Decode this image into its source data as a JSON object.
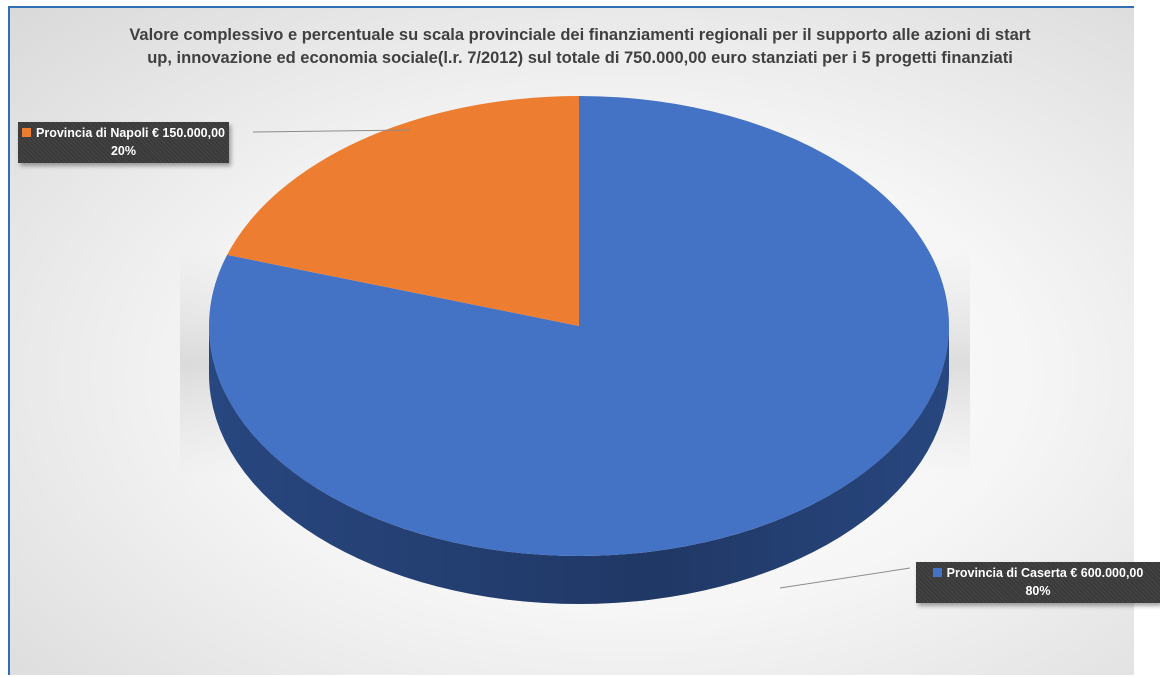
{
  "chart_data": {
    "type": "pie",
    "title_lines": [
      "Valore complessivo e percentuale su scala provinciale dei finanziamenti regionali per il supporto alle azioni di start",
      "up, innovazione ed economia  sociale(l.r. 7/2012) sul totale di 750.000,00 euro stanziati per i 5 progetti finanziati"
    ],
    "slices": [
      {
        "name": "Provincia di Caserta",
        "label": "Provincia di Caserta € 600.000,00",
        "value": 600000,
        "percent_label": "80%",
        "color": "#4472c4",
        "side_color": "#2a4a86"
      },
      {
        "name": "Provincia di Napoli",
        "label": "Provincia di Napoli € 150.000,00",
        "value": 150000,
        "percent_label": "20%",
        "color": "#ed7d31",
        "side_color": "#a3531c"
      }
    ],
    "legend": "none",
    "three_d": true
  }
}
